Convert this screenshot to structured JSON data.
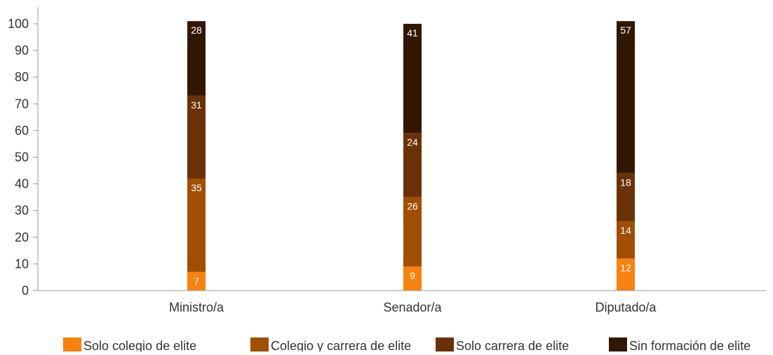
{
  "chart_data": {
    "type": "bar",
    "stacked": true,
    "categories": [
      "Ministro/a",
      "Senador/a",
      "Diputado/a"
    ],
    "series": [
      {
        "name": "Solo colegio de elite",
        "values": [
          7,
          9,
          12
        ],
        "color": "#f7820f"
      },
      {
        "name": "Colegio y carrera de elite",
        "values": [
          35,
          26,
          14
        ],
        "color": "#a04f02"
      },
      {
        "name": "Solo carrera de elite",
        "values": [
          31,
          24,
          18
        ],
        "color": "#6a3204"
      },
      {
        "name": "Sin formación de elite",
        "values": [
          28,
          41,
          57
        ],
        "color": "#321700"
      }
    ],
    "ylim": [
      0,
      100
    ],
    "yticks": [
      0,
      10,
      20,
      30,
      40,
      50,
      60,
      70,
      80,
      90,
      100
    ],
    "title": "",
    "xlabel": "",
    "ylabel": "",
    "grid": false,
    "legend_position": "bottom"
  }
}
